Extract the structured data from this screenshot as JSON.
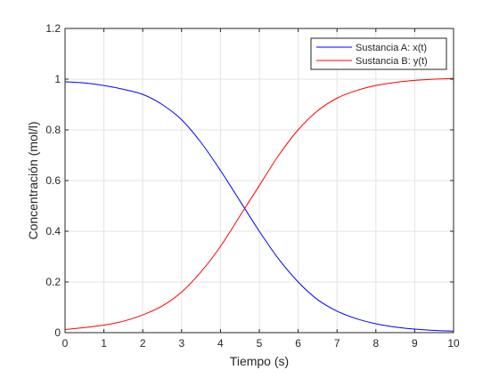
{
  "chart_data": {
    "type": "line",
    "xlabel": "Tiempo (s)",
    "ylabel": "Concentración (mol/l)",
    "xlim": [
      0,
      10
    ],
    "ylim": [
      0,
      1.2
    ],
    "grid": true,
    "legend_position": "top-right",
    "xticks": [
      0,
      1,
      2,
      3,
      4,
      5,
      6,
      7,
      8,
      9,
      10
    ],
    "xtick_labels": [
      "0",
      "1",
      "2",
      "3",
      "4",
      "5",
      "6",
      "7",
      "8",
      "9",
      "10"
    ],
    "yticks": [
      0,
      0.2,
      0.4,
      0.6,
      0.8,
      1,
      1.2
    ],
    "ytick_labels": [
      "0",
      "0.2",
      "0.4",
      "0.6",
      "0.8",
      "1",
      "1.2"
    ],
    "series": [
      {
        "name": "Sustancia A: x(t)",
        "color": "#0000ff",
        "x": [
          0,
          0.5,
          1,
          1.5,
          2,
          2.5,
          3,
          3.5,
          4,
          4.5,
          5,
          5.5,
          6,
          6.5,
          7,
          7.5,
          8,
          8.5,
          9,
          9.5,
          10
        ],
        "y": [
          0.99,
          0.985,
          0.975,
          0.96,
          0.94,
          0.9,
          0.84,
          0.75,
          0.64,
          0.52,
          0.4,
          0.29,
          0.2,
          0.13,
          0.085,
          0.055,
          0.035,
          0.022,
          0.014,
          0.009,
          0.006
        ]
      },
      {
        "name": "Sustancia B: y(t)",
        "color": "#ff0000",
        "x": [
          0,
          0.5,
          1,
          1.5,
          2,
          2.5,
          3,
          3.5,
          4,
          4.5,
          5,
          5.5,
          6,
          6.5,
          7,
          7.5,
          8,
          8.5,
          9,
          9.5,
          10
        ],
        "y": [
          0.012,
          0.02,
          0.03,
          0.045,
          0.07,
          0.105,
          0.16,
          0.24,
          0.34,
          0.46,
          0.58,
          0.7,
          0.8,
          0.875,
          0.925,
          0.955,
          0.975,
          0.987,
          0.995,
          1.0,
          1.003
        ]
      }
    ]
  }
}
